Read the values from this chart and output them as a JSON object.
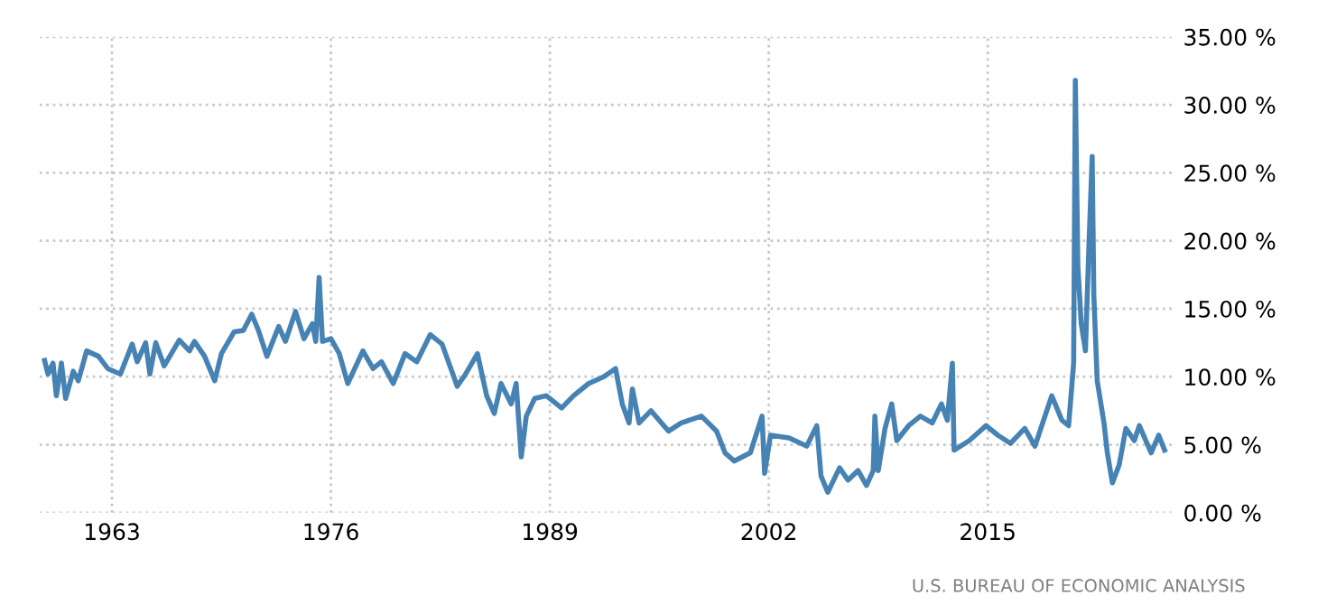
{
  "chart_data": {
    "type": "line",
    "annotations": [
      "U.S. BUREAU OF ECONOMIC ANALYSIS"
    ],
    "x": [
      1959.0,
      1959.2,
      1959.5,
      1959.7,
      1960.0,
      1960.25,
      1960.7,
      1961.0,
      1961.5,
      1962.2,
      1962.75,
      1963.5,
      1964.2,
      1964.5,
      1965.0,
      1965.25,
      1965.6,
      1966.1,
      1967.0,
      1967.6,
      1967.9,
      1968.5,
      1969.1,
      1969.5,
      1970.25,
      1970.8,
      1971.3,
      1971.7,
      1972.2,
      1972.9,
      1973.3,
      1973.9,
      1974.4,
      1974.9,
      1975.1,
      1975.3,
      1975.5,
      1976.0,
      1976.5,
      1977.0,
      1977.9,
      1978.5,
      1979.0,
      1979.7,
      1980.4,
      1981.1,
      1981.9,
      1982.6,
      1983.5,
      1984.0,
      1984.7,
      1985.25,
      1985.7,
      1986.1,
      1986.7,
      1987.0,
      1987.3,
      1987.6,
      1988.1,
      1988.8,
      1989.7,
      1990.4,
      1991.3,
      1992.2,
      1992.9,
      1993.3,
      1993.7,
      1993.9,
      1994.3,
      1995.0,
      1996.05,
      1996.8,
      1998.0,
      1998.9,
      1999.4,
      1999.95,
      2000.9,
      2001.6,
      2001.75,
      2002.1,
      2003.2,
      2004.25,
      2004.85,
      2005.1,
      2005.5,
      2006.2,
      2006.7,
      2007.3,
      2007.8,
      2008.2,
      2008.3,
      2008.5,
      2008.9,
      2009.3,
      2009.6,
      2010.3,
      2011.0,
      2011.7,
      2012.25,
      2012.6,
      2012.9,
      2013.0,
      2013.9,
      2014.9,
      2015.6,
      2016.35,
      2017.2,
      2017.8,
      2018.8,
      2019.4,
      2019.8,
      2020.1,
      2020.2,
      2020.35,
      2020.55,
      2020.8,
      2021.0,
      2021.2,
      2021.3,
      2021.5,
      2021.9,
      2022.1,
      2022.4,
      2022.8,
      2023.2,
      2023.7,
      2024.0,
      2024.7,
      2025.15,
      2025.5
    ],
    "series": [
      {
        "color": "#4682b4",
        "values": [
          11.2,
          10.2,
          11.0,
          8.6,
          11.0,
          8.4,
          10.4,
          9.7,
          11.9,
          11.5,
          10.6,
          10.2,
          12.4,
          11.1,
          12.5,
          10.2,
          12.5,
          10.8,
          12.7,
          11.9,
          12.6,
          11.5,
          9.7,
          11.7,
          13.3,
          13.4,
          14.6,
          13.4,
          11.5,
          13.7,
          12.6,
          14.8,
          12.8,
          13.9,
          12.6,
          17.3,
          12.6,
          12.8,
          11.7,
          9.5,
          11.9,
          10.6,
          11.1,
          9.5,
          11.7,
          11.1,
          13.1,
          12.4,
          9.3,
          10.2,
          11.7,
          8.6,
          7.3,
          9.5,
          8.0,
          9.5,
          4.1,
          7.1,
          8.4,
          8.6,
          7.7,
          8.6,
          9.5,
          10.0,
          10.6,
          8.0,
          6.6,
          9.1,
          6.6,
          7.5,
          6.0,
          6.6,
          7.1,
          6.0,
          4.4,
          3.8,
          4.4,
          7.1,
          2.9,
          5.7,
          5.5,
          4.9,
          6.4,
          2.7,
          1.5,
          3.3,
          2.4,
          3.1,
          2.0,
          3.1,
          7.1,
          3.1,
          6.2,
          8.0,
          5.3,
          6.4,
          7.1,
          6.6,
          8.0,
          6.8,
          11.0,
          4.6,
          5.3,
          6.4,
          5.7,
          5.1,
          6.2,
          4.9,
          8.6,
          6.8,
          6.4,
          11.0,
          31.8,
          18.1,
          13.9,
          11.9,
          19.4,
          26.2,
          15.9,
          9.7,
          6.6,
          4.4,
          2.2,
          3.5,
          6.2,
          5.3,
          6.4,
          4.4,
          5.7,
          4.6
        ]
      }
    ],
    "xlim": [
      1958.7,
      2026.0
    ],
    "xticks": [
      1963,
      1976,
      1989,
      2002,
      2015
    ],
    "ylim": [
      0,
      35
    ],
    "yticks": [
      {
        "value": 0,
        "label": "0.00 %"
      },
      {
        "value": 5,
        "label": "5.00 %"
      },
      {
        "value": 10,
        "label": "10.00 %"
      },
      {
        "value": 15,
        "label": "15.00 %"
      },
      {
        "value": 20,
        "label": "20.00 %"
      },
      {
        "value": 25,
        "label": "25.00 %"
      },
      {
        "value": 30,
        "label": "30.00 %"
      },
      {
        "value": 35,
        "label": "35.00 %"
      }
    ],
    "grid": true,
    "marker": "none",
    "line_style": "solid",
    "legend": false
  }
}
